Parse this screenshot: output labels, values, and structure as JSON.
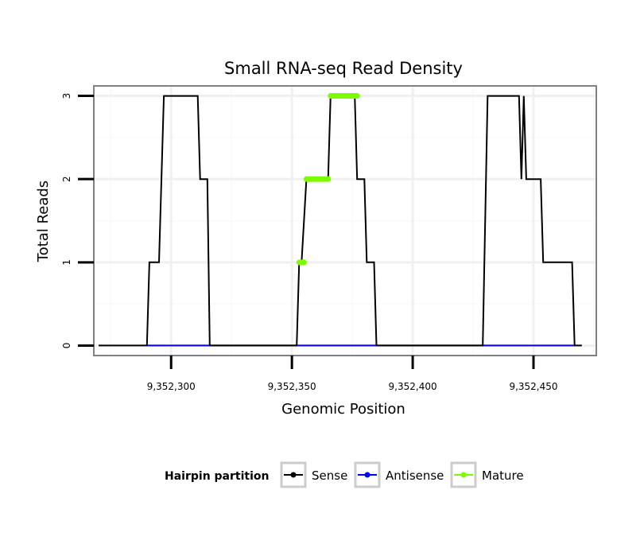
{
  "chart_data": {
    "type": "line",
    "title": "Small RNA-seq Read Density",
    "xlabel": "Genomic Position",
    "ylabel": "Total Reads",
    "xlim": [
      9352268,
      9352476
    ],
    "ylim": [
      -0.12,
      3.12
    ],
    "x_ticks": [
      9352300,
      9352350,
      9352400,
      9352450
    ],
    "x_tick_labels": [
      "9,352,300",
      "9,352,350",
      "9,352,400",
      "9,352,450"
    ],
    "y_ticks": [
      0,
      1,
      2,
      3
    ],
    "y_tick_labels": [
      "0",
      "1",
      "2",
      "3"
    ],
    "grid": true,
    "legend": {
      "title": "Hairpin partition",
      "position": "bottom",
      "entries": [
        "Sense",
        "Antisense",
        "Mature"
      ]
    },
    "series": [
      {
        "name": "Sense",
        "color": "#000000",
        "points": [
          [
            9352270,
            0
          ],
          [
            9352290,
            0
          ],
          [
            9352291,
            1
          ],
          [
            9352295,
            1
          ],
          [
            9352297,
            3
          ],
          [
            9352311,
            3
          ],
          [
            9352312,
            2
          ],
          [
            9352315,
            2
          ],
          [
            9352316,
            0
          ],
          [
            9352352,
            0
          ],
          [
            9352353,
            1
          ],
          [
            9352354,
            1
          ],
          [
            9352356,
            2
          ],
          [
            9352365,
            2
          ],
          [
            9352366,
            3
          ],
          [
            9352376,
            3
          ],
          [
            9352377,
            2
          ],
          [
            9352380,
            2
          ],
          [
            9352381,
            1
          ],
          [
            9352384,
            1
          ],
          [
            9352385,
            0
          ],
          [
            9352429,
            0
          ],
          [
            9352431,
            3
          ],
          [
            9352444,
            3
          ],
          [
            9352445,
            2
          ],
          [
            9352446,
            3
          ],
          [
            9352447,
            2
          ],
          [
            9352453,
            2
          ],
          [
            9352454,
            1
          ],
          [
            9352466,
            1
          ],
          [
            9352467,
            0
          ],
          [
            9352470,
            0
          ]
        ]
      },
      {
        "name": "Antisense",
        "color": "#0000ff",
        "points": [
          [
            9352290,
            0
          ],
          [
            9352316,
            0
          ],
          [
            9352352,
            0
          ],
          [
            9352385,
            0
          ],
          [
            9352429,
            0
          ],
          [
            9352467,
            0
          ]
        ]
      },
      {
        "name": "Mature",
        "color": "#7cfc00",
        "points": [
          [
            9352353,
            1
          ],
          [
            9352355,
            1
          ],
          [
            9352356,
            2
          ],
          [
            9352365,
            2
          ],
          [
            9352366,
            3
          ],
          [
            9352377,
            3
          ]
        ]
      }
    ]
  }
}
